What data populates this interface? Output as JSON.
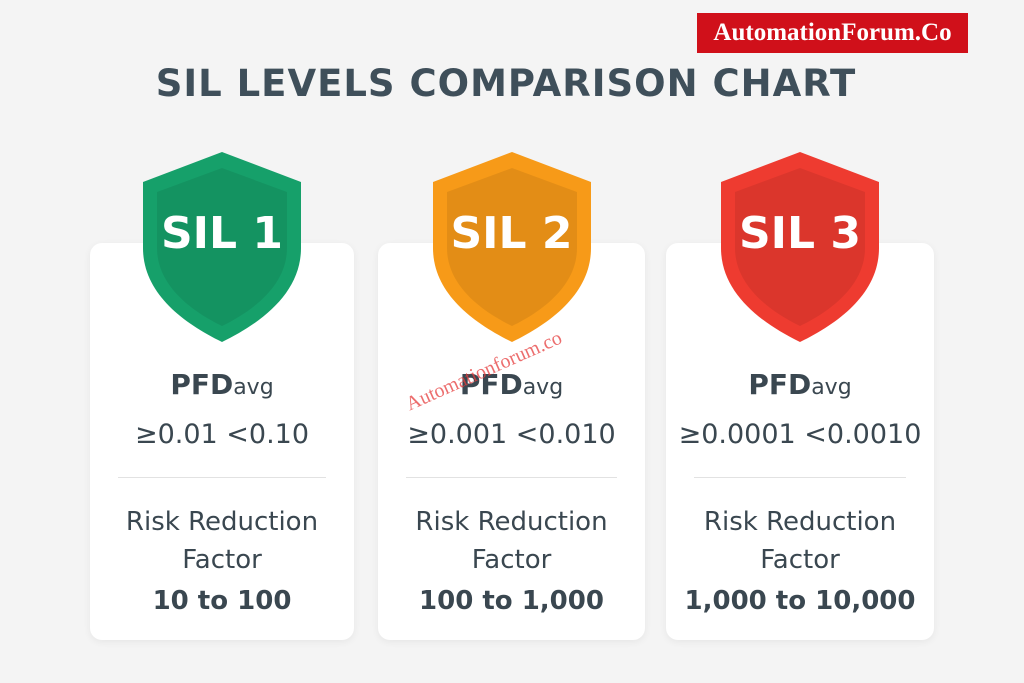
{
  "brand": "AutomationForum.Co",
  "title": "SIL LEVELS COMPARISON CHART",
  "watermark": "Automationforum.co",
  "levels": [
    {
      "badge": "SIL 1",
      "color": "#16a06a",
      "pfd": {
        "main": "PFD",
        "sub": "avg"
      },
      "range": "≥0.01  <0.10",
      "rrf_label": [
        "Risk Reduction",
        "Factor"
      ],
      "rrf": "10 to 100"
    },
    {
      "badge": "SIL 2",
      "color": "#f79a18",
      "pfd": {
        "main": "PFD",
        "sub": "avg"
      },
      "range": "≥0.001 <0.010",
      "rrf_label": [
        "Risk Reduction",
        "Factor"
      ],
      "rrf": "100 to 1,000"
    },
    {
      "badge": "SIL 3",
      "color": "#ee3b30",
      "pfd": {
        "main": "PFD",
        "sub": "avg"
      },
      "range": "≥0.0001 <0.0010",
      "rrf_label": [
        "Risk Reduction",
        "Factor"
      ],
      "rrf": "1,000 to 10,000"
    }
  ]
}
